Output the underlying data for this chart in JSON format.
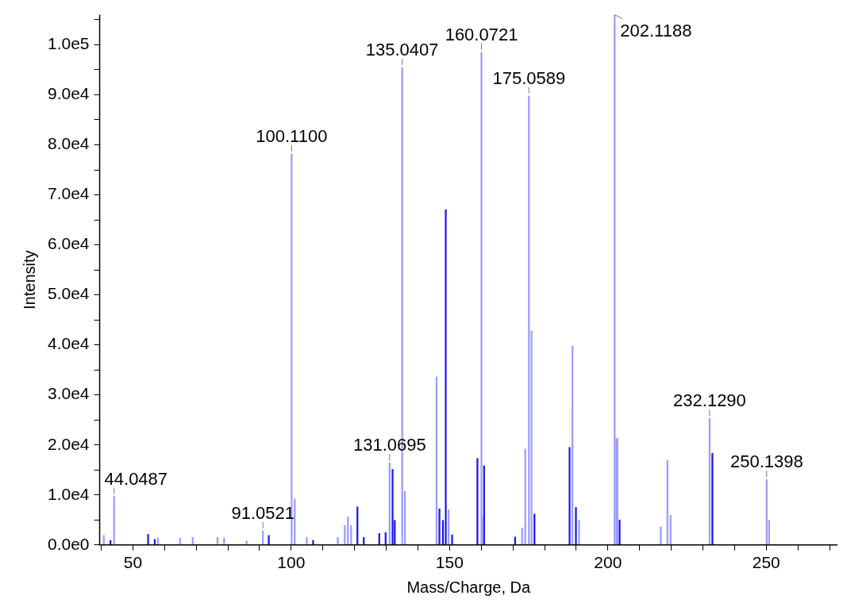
{
  "chart_data": {
    "type": "bar",
    "xlabel": "Mass/Charge, Da",
    "ylabel": "Intensity",
    "xlim": [
      39.5,
      272.5
    ],
    "ylim": [
      0,
      106000
    ],
    "xticks": [
      {
        "value": 40,
        "label": null
      },
      50,
      {
        "value": 60,
        "label": null
      },
      {
        "value": 70,
        "label": null
      },
      {
        "value": 80,
        "label": null
      },
      {
        "value": 90,
        "label": null
      },
      100,
      {
        "value": 110,
        "label": null
      },
      {
        "value": 120,
        "label": null
      },
      {
        "value": 130,
        "label": null
      },
      {
        "value": 140,
        "label": null
      },
      150,
      {
        "value": 160,
        "label": null
      },
      {
        "value": 170,
        "label": null
      },
      {
        "value": 180,
        "label": null
      },
      {
        "value": 190,
        "label": null
      },
      200,
      {
        "value": 210,
        "label": null
      },
      {
        "value": 220,
        "label": null
      },
      {
        "value": 230,
        "label": null
      },
      {
        "value": 240,
        "label": null
      },
      250,
      {
        "value": 260,
        "label": null
      },
      {
        "value": 270,
        "label": null
      }
    ],
    "yticks": [
      {
        "value": 0,
        "label": "0.0e0"
      },
      {
        "value": 5000,
        "label": null
      },
      {
        "value": 10000,
        "label": "1.0e4"
      },
      {
        "value": 15000,
        "label": null
      },
      {
        "value": 20000,
        "label": "2.0e4"
      },
      {
        "value": 25000,
        "label": null
      },
      {
        "value": 30000,
        "label": "3.0e4"
      },
      {
        "value": 35000,
        "label": null
      },
      {
        "value": 40000,
        "label": "4.0e4"
      },
      {
        "value": 45000,
        "label": null
      },
      {
        "value": 50000,
        "label": "5.0e4"
      },
      {
        "value": 55000,
        "label": null
      },
      {
        "value": 60000,
        "label": "6.0e4"
      },
      {
        "value": 65000,
        "label": null
      },
      {
        "value": 70000,
        "label": "7.0e4"
      },
      {
        "value": 75000,
        "label": null
      },
      {
        "value": 80000,
        "label": "8.0e4"
      },
      {
        "value": 85000,
        "label": null
      },
      {
        "value": 90000,
        "label": "9.0e4"
      },
      {
        "value": 95000,
        "label": null
      },
      {
        "value": 100000,
        "label": "1.0e5"
      },
      {
        "value": 105000,
        "label": null
      }
    ],
    "series": [
      {
        "color": "#9c9cff",
        "x": [
          40.8,
          44.0487,
          57.9,
          64.9,
          68.9,
          76.7,
          78.8,
          85.9,
          91.0521,
          100.11,
          101.1,
          104.9,
          114.7,
          116.9,
          117.9,
          118.9,
          131.0695,
          135.0407,
          135.9,
          145.9,
          149.7,
          160.0721,
          160.4,
          172.9,
          173.9,
          175.0589,
          175.9,
          188.8,
          190.9,
          202.1188,
          202.7,
          203.0,
          216.7,
          218.8,
          219.8,
          232.129,
          250.1398,
          250.9
        ],
        "values": [
          1900,
          9700,
          1400,
          1400,
          1500,
          1500,
          1400,
          800,
          2800,
          78200,
          9200,
          1500,
          1500,
          3900,
          5600,
          3900,
          16400,
          95500,
          10700,
          33600,
          7000,
          98500,
          5600,
          3400,
          19200,
          89800,
          42800,
          39800,
          5000,
          106000,
          21300,
          21300,
          3600,
          16900,
          5900,
          25300,
          13100,
          4900
        ]
      },
      {
        "color": "#1a1ae6",
        "x": [
          42.9,
          54.8,
          56.9,
          92.9,
          106.9,
          120.9,
          122.9,
          127.8,
          129.8,
          132.0,
          132.7,
          146.8,
          147.9,
          148.8,
          150.8,
          158.8,
          160.9,
          170.7,
          176.8,
          187.9,
          189.9,
          203.7,
          233.0
        ],
        "values": [
          900,
          2100,
          1100,
          1900,
          900,
          7600,
          1500,
          2300,
          2500,
          15100,
          4900,
          7200,
          4900,
          67000,
          2000,
          17300,
          15800,
          1600,
          6200,
          19500,
          7500,
          5000,
          18300
        ]
      }
    ],
    "annotations": [
      {
        "text": "44.0487",
        "x": 44.0487,
        "y": 9700
      },
      {
        "text": "91.0521",
        "x": 91.0521,
        "y": 2800
      },
      {
        "text": "100.1100",
        "x": 100.11,
        "y": 78200
      },
      {
        "text": "131.0695",
        "x": 131.0695,
        "y": 16400
      },
      {
        "text": "135.0407",
        "x": 135.0407,
        "y": 95500
      },
      {
        "text": "160.0721",
        "x": 160.0721,
        "y": 98500
      },
      {
        "text": "175.0589",
        "x": 175.0589,
        "y": 89800
      },
      {
        "text": "202.1188",
        "x": 202.1188,
        "y": 106000
      },
      {
        "text": "232.1290",
        "x": 232.129,
        "y": 25300
      },
      {
        "text": "250.1398",
        "x": 250.1398,
        "y": 13100
      }
    ]
  }
}
